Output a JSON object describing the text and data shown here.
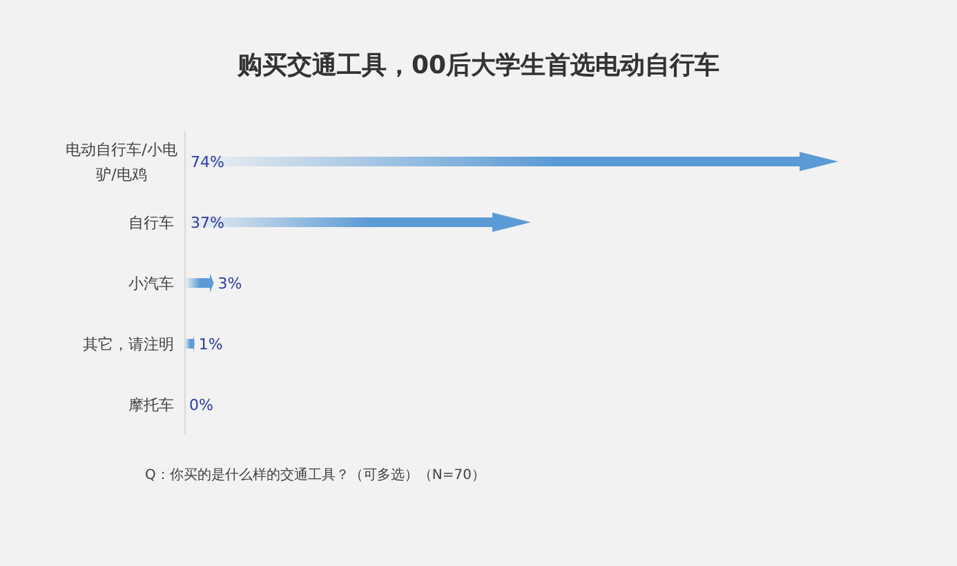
{
  "chart_data": {
    "type": "bar",
    "orientation": "horizontal",
    "title": "购买交通工具，00后大学生首选电动自行车",
    "categories": [
      "电动自行车/小电驴/电鸡",
      "自行车",
      "小汽车",
      "其它，请注明",
      "摩托车"
    ],
    "values": [
      74,
      37,
      3,
      1,
      0
    ],
    "value_labels": [
      "74%",
      "37%",
      "3%",
      "1%",
      "0%"
    ],
    "color": "#5b9bd5",
    "annotations": [
      "Q：你买的是什么样的交通工具？（可多选）（N=70）"
    ]
  }
}
